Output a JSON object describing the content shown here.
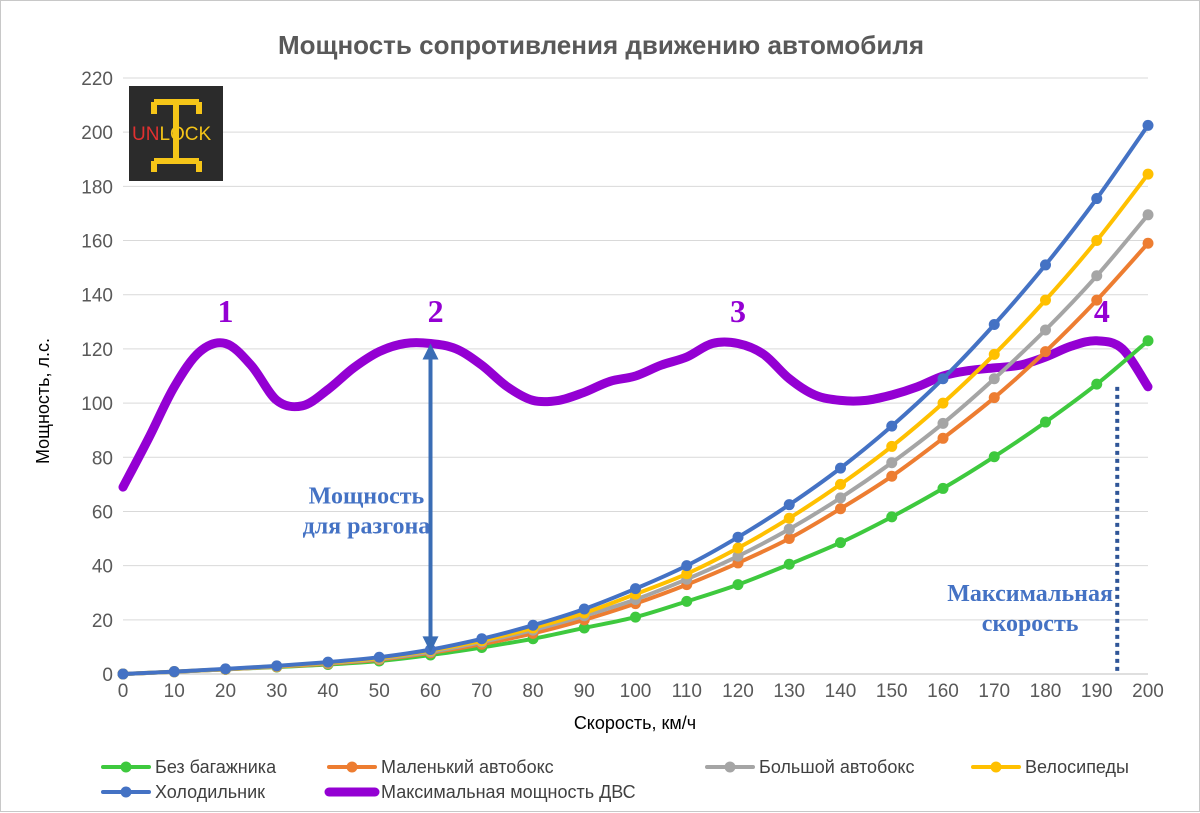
{
  "chart_data": {
    "type": "line",
    "title": "Мощность сопротивления движению автомобиля",
    "xlabel": "Скорость, км/ч",
    "ylabel": "Мощность, л.с.",
    "xlim": [
      0,
      200
    ],
    "ylim": [
      0,
      220
    ],
    "x_ticks": [
      0,
      10,
      20,
      30,
      40,
      50,
      60,
      70,
      80,
      90,
      100,
      110,
      120,
      130,
      140,
      150,
      160,
      170,
      180,
      190,
      200
    ],
    "y_ticks": [
      0,
      20,
      40,
      60,
      80,
      100,
      120,
      140,
      160,
      180,
      200,
      220
    ],
    "grid": "horizontal",
    "legend_position": "bottom",
    "x": [
      0,
      10,
      20,
      30,
      40,
      50,
      60,
      70,
      80,
      90,
      100,
      110,
      120,
      130,
      140,
      150,
      160,
      170,
      180,
      190,
      200
    ],
    "series": [
      {
        "name": "Без багажника",
        "color": "#3ec93e",
        "marker": true,
        "values": [
          0,
          0.8,
          1.7,
          2.6,
          3.5,
          4.8,
          7,
          9.8,
          13,
          17,
          21,
          26.8,
          33,
          40.5,
          48.5,
          58,
          68.5,
          80.2,
          93,
          107,
          123
        ]
      },
      {
        "name": "Маленький автобокс",
        "color": "#ed7d31",
        "marker": true,
        "values": [
          0,
          0.8,
          1.7,
          2.7,
          3.8,
          5.3,
          7.8,
          11,
          15,
          20,
          26,
          33,
          41,
          50,
          61,
          73,
          87,
          102,
          119,
          138,
          159
        ]
      },
      {
        "name": "Большой автобокс",
        "color": "#a5a5a5",
        "marker": true,
        "values": [
          0,
          0.8,
          1.7,
          2.8,
          4,
          5.6,
          8.2,
          11.8,
          16.2,
          21.5,
          27.5,
          35,
          43.5,
          53.5,
          65,
          78,
          92.5,
          109,
          127,
          147,
          169.5
        ]
      },
      {
        "name": "Велосипеды",
        "color": "#ffc000",
        "marker": true,
        "values": [
          0,
          0.9,
          1.8,
          2.9,
          4.2,
          5.9,
          8.7,
          12.3,
          17,
          22.5,
          29.5,
          37,
          46.5,
          57.5,
          70,
          84,
          100,
          118,
          138,
          160,
          184.5
        ]
      },
      {
        "name": "Холодильник",
        "color": "#4472c4",
        "marker": true,
        "values": [
          0,
          0.9,
          1.9,
          3,
          4.4,
          6.2,
          9,
          13,
          18,
          24,
          31.5,
          40,
          50.5,
          62.5,
          76,
          91.5,
          109,
          129,
          151,
          175.5,
          202.5
        ]
      },
      {
        "name": "Максимальная мощность ДВС",
        "color": "#9400d3",
        "marker": false,
        "x": [
          0,
          5,
          10,
          15,
          20,
          25,
          30,
          35,
          40,
          45,
          50,
          55,
          60,
          65,
          70,
          75,
          80,
          85,
          90,
          95,
          100,
          105,
          110,
          115,
          120,
          125,
          130,
          135,
          140,
          145,
          150,
          155,
          160,
          165,
          170,
          175,
          180,
          185,
          190,
          195,
          200
        ],
        "values": [
          69,
          87,
          106,
          119,
          122,
          114,
          101,
          99,
          105,
          113,
          119,
          122,
          122,
          120,
          114,
          106,
          101,
          101,
          104,
          108,
          110,
          114,
          117,
          122,
          122,
          118,
          109,
          103,
          101,
          101,
          103,
          106,
          110,
          112,
          113,
          114,
          117,
          121,
          123,
          120,
          106
        ]
      }
    ],
    "annotations": {
      "peaks": [
        {
          "label": "1",
          "x": 20,
          "y": 130
        },
        {
          "label": "2",
          "x": 61,
          "y": 130
        },
        {
          "label": "3",
          "x": 120,
          "y": 130
        },
        {
          "label": "4",
          "x": 191,
          "y": 130
        }
      ],
      "accel_arrow": {
        "x": 60,
        "y_from": 122,
        "y_to": 8
      },
      "accel_label_lines": [
        "Мощность",
        "для разгона"
      ],
      "accel_label_at": {
        "x": 47.5,
        "y": 63
      },
      "max_speed_line": {
        "x": 194,
        "y_from": 106,
        "y_to": 0
      },
      "max_speed_label_lines": [
        "Максимальная",
        "скорость"
      ],
      "max_speed_label_at": {
        "x": 177,
        "y": 27
      }
    }
  },
  "logo": {
    "part1": "UN",
    "part2": "LOCK",
    "color1": "#e03030",
    "color2": "#f5c518",
    "background": "#2b2b2b"
  }
}
